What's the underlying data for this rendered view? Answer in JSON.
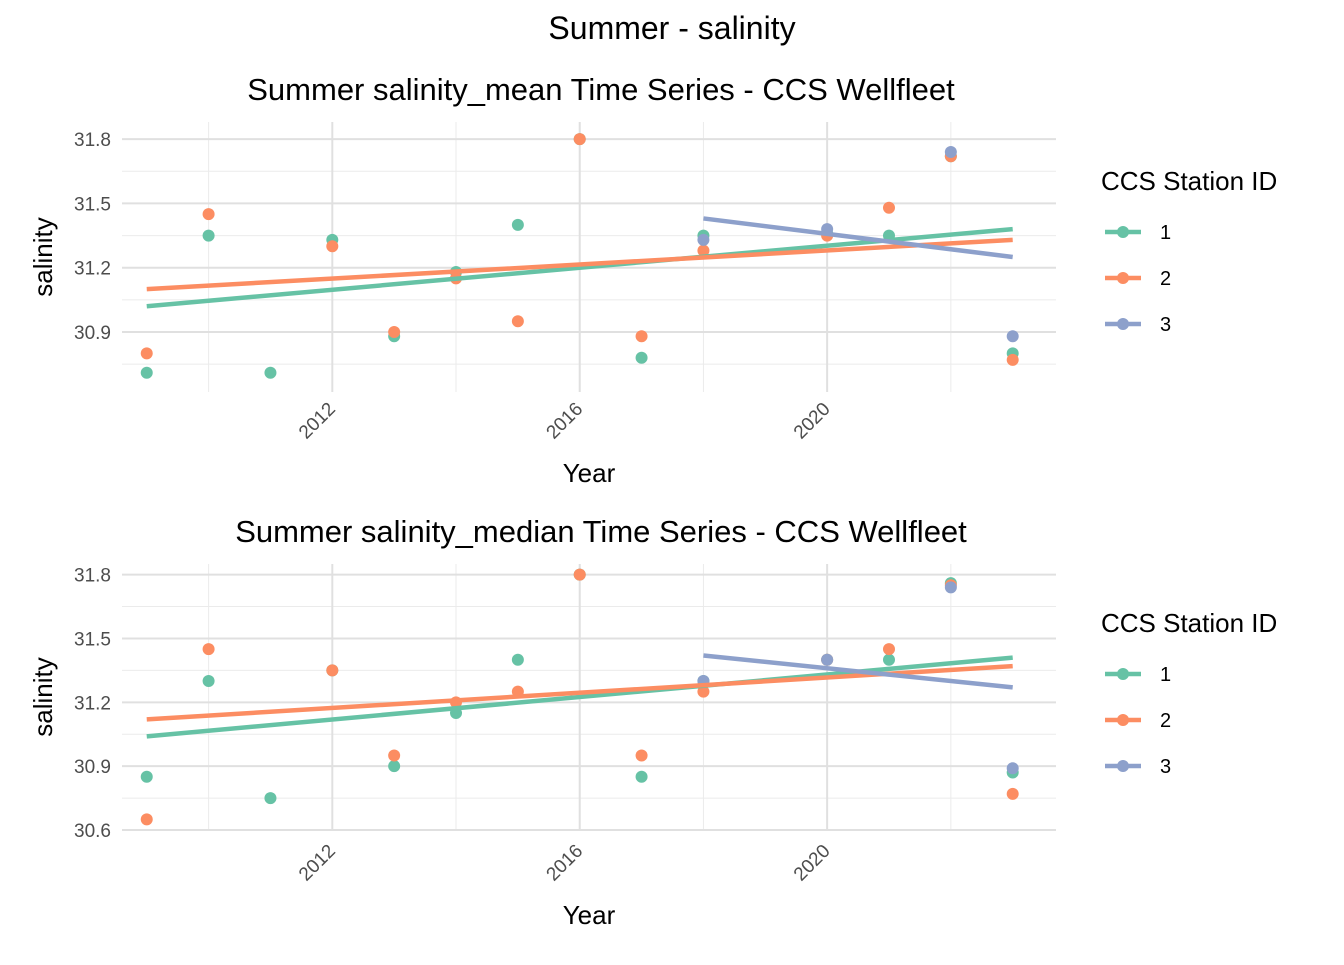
{
  "suptitle": "Summer - salinity",
  "chart_data": [
    {
      "type": "scatter",
      "title": "Summer salinity_mean Time Series - CCS Wellfleet",
      "xlabel": "Year",
      "ylabel": "salinity",
      "xlim": [
        2008.6,
        2023.7
      ],
      "ylim": [
        30.62,
        31.88
      ],
      "x_ticks": [
        2012,
        2016,
        2020
      ],
      "y_ticks": [
        30.9,
        31.2,
        31.5,
        31.8
      ],
      "y_tick_labels": [
        "30.9",
        "31.2",
        "31.5",
        "31.8"
      ],
      "grid": true,
      "legend": {
        "title": "CCS Station ID",
        "position": "right"
      },
      "series": [
        {
          "name": "1",
          "color": "#66c2a5",
          "points": [
            [
              2009,
              30.71
            ],
            [
              2010,
              31.35
            ],
            [
              2011,
              30.71
            ],
            [
              2012,
              31.33
            ],
            [
              2013,
              30.88
            ],
            [
              2014,
              31.18
            ],
            [
              2015,
              31.4
            ],
            [
              2016,
              31.8
            ],
            [
              2017,
              30.78
            ],
            [
              2018,
              31.35
            ],
            [
              2020,
              31.36
            ],
            [
              2021,
              31.35
            ],
            [
              2022,
              31.72
            ],
            [
              2023,
              30.8
            ]
          ],
          "trend": [
            [
              2009,
              31.02
            ],
            [
              2023,
              31.38
            ]
          ]
        },
        {
          "name": "2",
          "color": "#fc8d62",
          "points": [
            [
              2009,
              30.8
            ],
            [
              2010,
              31.45
            ],
            [
              2012,
              31.3
            ],
            [
              2013,
              30.9
            ],
            [
              2014,
              31.15
            ],
            [
              2015,
              30.95
            ],
            [
              2016,
              31.8
            ],
            [
              2017,
              30.88
            ],
            [
              2018,
              31.28
            ],
            [
              2020,
              31.35
            ],
            [
              2021,
              31.48
            ],
            [
              2022,
              31.72
            ],
            [
              2023,
              30.77
            ]
          ],
          "trend": [
            [
              2009,
              31.1
            ],
            [
              2023,
              31.33
            ]
          ]
        },
        {
          "name": "3",
          "color": "#8da0cb",
          "points": [
            [
              2018,
              31.33
            ],
            [
              2020,
              31.38
            ],
            [
              2022,
              31.74
            ],
            [
              2023,
              30.88
            ]
          ],
          "trend": [
            [
              2018,
              31.43
            ],
            [
              2023,
              31.25
            ]
          ]
        }
      ]
    },
    {
      "type": "scatter",
      "title": "Summer salinity_median Time Series - CCS Wellfleet",
      "xlabel": "Year",
      "ylabel": "salinity",
      "xlim": [
        2008.6,
        2023.7
      ],
      "ylim": [
        30.6,
        31.85
      ],
      "x_ticks": [
        2012,
        2016,
        2020
      ],
      "y_ticks": [
        30.6,
        30.9,
        31.2,
        31.5,
        31.8
      ],
      "y_tick_labels": [
        "30.6",
        "30.9",
        "31.2",
        "31.5",
        "31.8"
      ],
      "grid": true,
      "legend": {
        "title": "CCS Station ID",
        "position": "right"
      },
      "series": [
        {
          "name": "1",
          "color": "#66c2a5",
          "points": [
            [
              2009,
              30.85
            ],
            [
              2010,
              31.3
            ],
            [
              2011,
              30.75
            ],
            [
              2012,
              31.35
            ],
            [
              2013,
              30.9
            ],
            [
              2014,
              31.15
            ],
            [
              2015,
              31.4
            ],
            [
              2016,
              31.8
            ],
            [
              2017,
              30.85
            ],
            [
              2018,
              31.3
            ],
            [
              2020,
              31.4
            ],
            [
              2021,
              31.4
            ],
            [
              2022,
              31.76
            ],
            [
              2023,
              30.87
            ]
          ],
          "trend": [
            [
              2009,
              31.04
            ],
            [
              2023,
              31.41
            ]
          ]
        },
        {
          "name": "2",
          "color": "#fc8d62",
          "points": [
            [
              2009,
              30.65
            ],
            [
              2010,
              31.45
            ],
            [
              2012,
              31.35
            ],
            [
              2013,
              30.95
            ],
            [
              2014,
              31.2
            ],
            [
              2015,
              31.25
            ],
            [
              2016,
              31.8
            ],
            [
              2017,
              30.95
            ],
            [
              2018,
              31.25
            ],
            [
              2020,
              31.4
            ],
            [
              2021,
              31.45
            ],
            [
              2022,
              31.75
            ],
            [
              2023,
              30.77
            ]
          ],
          "trend": [
            [
              2009,
              31.12
            ],
            [
              2023,
              31.37
            ]
          ]
        },
        {
          "name": "3",
          "color": "#8da0cb",
          "points": [
            [
              2018,
              31.3
            ],
            [
              2020,
              31.4
            ],
            [
              2022,
              31.74
            ],
            [
              2023,
              30.89
            ]
          ],
          "trend": [
            [
              2018,
              31.42
            ],
            [
              2023,
              31.27
            ]
          ]
        }
      ]
    }
  ]
}
